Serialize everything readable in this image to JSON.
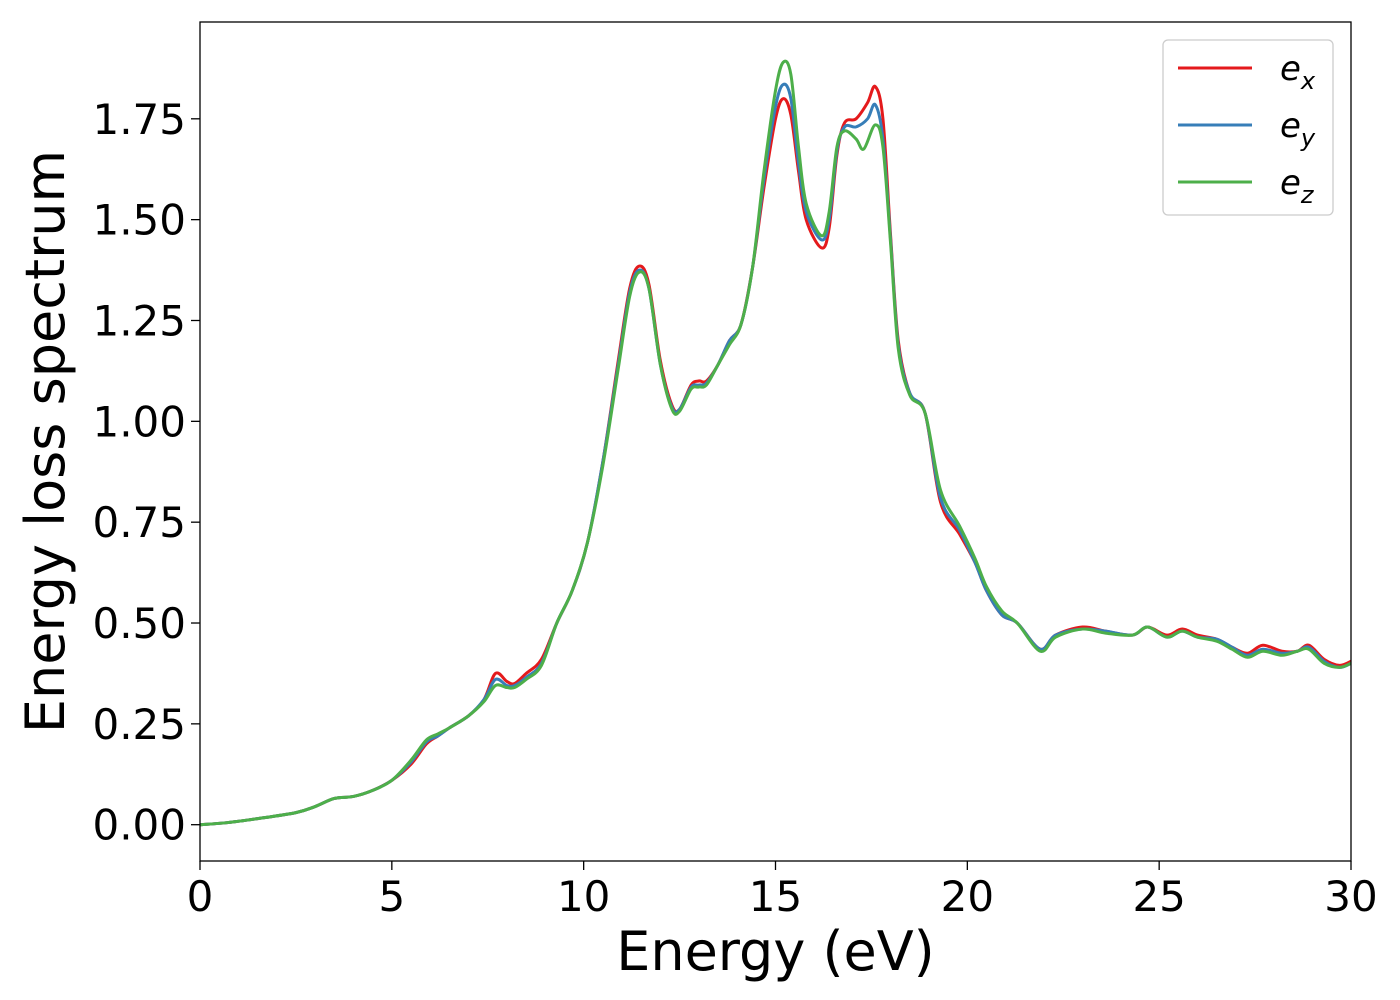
{
  "chart_data": {
    "type": "line",
    "xlabel": "Energy (eV)",
    "ylabel": "Energy loss spectrum",
    "xlim": [
      0,
      30
    ],
    "ylim": [
      -0.09,
      1.99
    ],
    "xticks": [
      0,
      5,
      10,
      15,
      20,
      25,
      30
    ],
    "xtick_labels": [
      "0",
      "5",
      "10",
      "15",
      "20",
      "25",
      "30"
    ],
    "yticks": [
      0,
      0.25,
      0.5,
      0.75,
      1.0,
      1.25,
      1.5,
      1.75
    ],
    "ytick_labels": [
      "0.00",
      "0.25",
      "0.50",
      "0.75",
      "1.00",
      "1.25",
      "1.50",
      "1.75"
    ],
    "grid": false,
    "legend_position": "top-right",
    "legend": [
      {
        "base": "e",
        "sub": "x"
      },
      {
        "base": "e",
        "sub": "y"
      },
      {
        "base": "e",
        "sub": "z"
      }
    ],
    "series": [
      {
        "color": "#e41a1c",
        "points": [
          [
            0,
            0
          ],
          [
            0.7,
            0.005
          ],
          [
            1.5,
            0.015
          ],
          [
            2.5,
            0.03
          ],
          [
            3,
            0.045
          ],
          [
            3.5,
            0.065
          ],
          [
            4,
            0.07
          ],
          [
            4.5,
            0.085
          ],
          [
            5,
            0.11
          ],
          [
            5.5,
            0.15
          ],
          [
            5.9,
            0.2
          ],
          [
            6.2,
            0.22
          ],
          [
            6.5,
            0.24
          ],
          [
            7,
            0.27
          ],
          [
            7.4,
            0.31
          ],
          [
            7.7,
            0.375
          ],
          [
            8,
            0.355
          ],
          [
            8.2,
            0.35
          ],
          [
            8.5,
            0.375
          ],
          [
            8.9,
            0.41
          ],
          [
            9.3,
            0.5
          ],
          [
            9.7,
            0.58
          ],
          [
            10.1,
            0.7
          ],
          [
            10.5,
            0.9
          ],
          [
            10.9,
            1.15
          ],
          [
            11.2,
            1.33
          ],
          [
            11.45,
            1.385
          ],
          [
            11.7,
            1.34
          ],
          [
            12,
            1.15
          ],
          [
            12.3,
            1.04
          ],
          [
            12.5,
            1.03
          ],
          [
            12.8,
            1.09
          ],
          [
            13,
            1.1
          ],
          [
            13.2,
            1.1
          ],
          [
            13.5,
            1.14
          ],
          [
            13.8,
            1.2
          ],
          [
            14.1,
            1.24
          ],
          [
            14.4,
            1.38
          ],
          [
            14.7,
            1.58
          ],
          [
            15,
            1.75
          ],
          [
            15.2,
            1.8
          ],
          [
            15.4,
            1.76
          ],
          [
            15.6,
            1.62
          ],
          [
            15.8,
            1.5
          ],
          [
            16.2,
            1.43
          ],
          [
            16.4,
            1.48
          ],
          [
            16.6,
            1.66
          ],
          [
            16.8,
            1.74
          ],
          [
            17.1,
            1.75
          ],
          [
            17.4,
            1.79
          ],
          [
            17.6,
            1.83
          ],
          [
            17.8,
            1.75
          ],
          [
            18,
            1.46
          ],
          [
            18.2,
            1.2
          ],
          [
            18.5,
            1.07
          ],
          [
            18.9,
            1.02
          ],
          [
            19.3,
            0.8
          ],
          [
            19.8,
            0.72
          ],
          [
            20.2,
            0.65
          ],
          [
            20.5,
            0.58
          ],
          [
            20.9,
            0.52
          ],
          [
            21.3,
            0.5
          ],
          [
            21.9,
            0.435
          ],
          [
            22.3,
            0.47
          ],
          [
            23,
            0.49
          ],
          [
            23.6,
            0.48
          ],
          [
            24.3,
            0.47
          ],
          [
            24.7,
            0.49
          ],
          [
            25.2,
            0.47
          ],
          [
            25.6,
            0.485
          ],
          [
            26,
            0.47
          ],
          [
            26.5,
            0.46
          ],
          [
            26.9,
            0.44
          ],
          [
            27.3,
            0.425
          ],
          [
            27.7,
            0.445
          ],
          [
            28.2,
            0.43
          ],
          [
            28.6,
            0.43
          ],
          [
            28.9,
            0.445
          ],
          [
            29.3,
            0.41
          ],
          [
            29.7,
            0.395
          ],
          [
            30,
            0.405
          ]
        ]
      },
      {
        "color": "#377eb8",
        "points": [
          [
            0,
            0
          ],
          [
            0.7,
            0.005
          ],
          [
            1.5,
            0.015
          ],
          [
            2.5,
            0.03
          ],
          [
            3,
            0.045
          ],
          [
            3.5,
            0.065
          ],
          [
            4,
            0.07
          ],
          [
            4.5,
            0.085
          ],
          [
            5,
            0.11
          ],
          [
            5.5,
            0.155
          ],
          [
            5.9,
            0.205
          ],
          [
            6.2,
            0.22
          ],
          [
            6.5,
            0.24
          ],
          [
            7,
            0.27
          ],
          [
            7.4,
            0.31
          ],
          [
            7.7,
            0.36
          ],
          [
            8,
            0.345
          ],
          [
            8.2,
            0.345
          ],
          [
            8.5,
            0.365
          ],
          [
            8.9,
            0.4
          ],
          [
            9.3,
            0.5
          ],
          [
            9.7,
            0.58
          ],
          [
            10.1,
            0.7
          ],
          [
            10.5,
            0.9
          ],
          [
            10.9,
            1.14
          ],
          [
            11.2,
            1.32
          ],
          [
            11.45,
            1.375
          ],
          [
            11.7,
            1.33
          ],
          [
            12,
            1.14
          ],
          [
            12.3,
            1.035
          ],
          [
            12.5,
            1.03
          ],
          [
            12.8,
            1.085
          ],
          [
            13,
            1.09
          ],
          [
            13.2,
            1.095
          ],
          [
            13.5,
            1.14
          ],
          [
            13.8,
            1.2
          ],
          [
            14.1,
            1.24
          ],
          [
            14.4,
            1.38
          ],
          [
            14.7,
            1.6
          ],
          [
            15,
            1.78
          ],
          [
            15.2,
            1.835
          ],
          [
            15.4,
            1.8
          ],
          [
            15.6,
            1.64
          ],
          [
            15.8,
            1.52
          ],
          [
            16.2,
            1.45
          ],
          [
            16.4,
            1.5
          ],
          [
            16.6,
            1.67
          ],
          [
            16.8,
            1.73
          ],
          [
            17.1,
            1.73
          ],
          [
            17.4,
            1.75
          ],
          [
            17.6,
            1.785
          ],
          [
            17.8,
            1.7
          ],
          [
            18,
            1.45
          ],
          [
            18.2,
            1.19
          ],
          [
            18.5,
            1.07
          ],
          [
            18.9,
            1.02
          ],
          [
            19.3,
            0.81
          ],
          [
            19.8,
            0.73
          ],
          [
            20.2,
            0.65
          ],
          [
            20.5,
            0.58
          ],
          [
            20.9,
            0.52
          ],
          [
            21.3,
            0.5
          ],
          [
            21.9,
            0.435
          ],
          [
            22.3,
            0.47
          ],
          [
            23,
            0.485
          ],
          [
            23.6,
            0.48
          ],
          [
            24.3,
            0.47
          ],
          [
            24.7,
            0.49
          ],
          [
            25.2,
            0.465
          ],
          [
            25.6,
            0.48
          ],
          [
            26,
            0.465
          ],
          [
            26.5,
            0.46
          ],
          [
            26.9,
            0.44
          ],
          [
            27.3,
            0.42
          ],
          [
            27.7,
            0.435
          ],
          [
            28.2,
            0.425
          ],
          [
            28.6,
            0.43
          ],
          [
            28.9,
            0.44
          ],
          [
            29.3,
            0.405
          ],
          [
            29.7,
            0.39
          ],
          [
            30,
            0.4
          ]
        ]
      },
      {
        "color": "#4daf4a",
        "points": [
          [
            0,
            0
          ],
          [
            0.7,
            0.005
          ],
          [
            1.5,
            0.015
          ],
          [
            2.5,
            0.03
          ],
          [
            3,
            0.045
          ],
          [
            3.5,
            0.065
          ],
          [
            4,
            0.07
          ],
          [
            4.5,
            0.085
          ],
          [
            5,
            0.11
          ],
          [
            5.5,
            0.16
          ],
          [
            5.9,
            0.21
          ],
          [
            6.2,
            0.225
          ],
          [
            6.5,
            0.24
          ],
          [
            7,
            0.27
          ],
          [
            7.4,
            0.305
          ],
          [
            7.7,
            0.345
          ],
          [
            8,
            0.34
          ],
          [
            8.2,
            0.34
          ],
          [
            8.5,
            0.36
          ],
          [
            8.9,
            0.395
          ],
          [
            9.3,
            0.5
          ],
          [
            9.7,
            0.58
          ],
          [
            10.1,
            0.7
          ],
          [
            10.5,
            0.89
          ],
          [
            10.9,
            1.13
          ],
          [
            11.2,
            1.31
          ],
          [
            11.45,
            1.37
          ],
          [
            11.7,
            1.33
          ],
          [
            12,
            1.14
          ],
          [
            12.3,
            1.03
          ],
          [
            12.5,
            1.025
          ],
          [
            12.8,
            1.08
          ],
          [
            13,
            1.085
          ],
          [
            13.2,
            1.09
          ],
          [
            13.5,
            1.14
          ],
          [
            13.8,
            1.19
          ],
          [
            14.1,
            1.24
          ],
          [
            14.4,
            1.38
          ],
          [
            14.7,
            1.62
          ],
          [
            15,
            1.82
          ],
          [
            15.2,
            1.89
          ],
          [
            15.4,
            1.86
          ],
          [
            15.6,
            1.68
          ],
          [
            15.8,
            1.54
          ],
          [
            16.2,
            1.46
          ],
          [
            16.4,
            1.52
          ],
          [
            16.6,
            1.68
          ],
          [
            16.8,
            1.72
          ],
          [
            17.1,
            1.7
          ],
          [
            17.3,
            1.675
          ],
          [
            17.6,
            1.735
          ],
          [
            17.8,
            1.68
          ],
          [
            18,
            1.44
          ],
          [
            18.2,
            1.18
          ],
          [
            18.5,
            1.065
          ],
          [
            18.9,
            1.02
          ],
          [
            19.3,
            0.83
          ],
          [
            19.8,
            0.74
          ],
          [
            20.2,
            0.66
          ],
          [
            20.5,
            0.59
          ],
          [
            20.9,
            0.53
          ],
          [
            21.3,
            0.5
          ],
          [
            21.9,
            0.43
          ],
          [
            22.3,
            0.465
          ],
          [
            23,
            0.485
          ],
          [
            23.6,
            0.475
          ],
          [
            24.3,
            0.47
          ],
          [
            24.7,
            0.49
          ],
          [
            25.2,
            0.465
          ],
          [
            25.6,
            0.48
          ],
          [
            26,
            0.465
          ],
          [
            26.5,
            0.455
          ],
          [
            26.9,
            0.435
          ],
          [
            27.3,
            0.415
          ],
          [
            27.7,
            0.43
          ],
          [
            28.2,
            0.42
          ],
          [
            28.6,
            0.43
          ],
          [
            28.9,
            0.435
          ],
          [
            29.3,
            0.4
          ],
          [
            29.7,
            0.39
          ],
          [
            30,
            0.4
          ]
        ]
      }
    ]
  }
}
